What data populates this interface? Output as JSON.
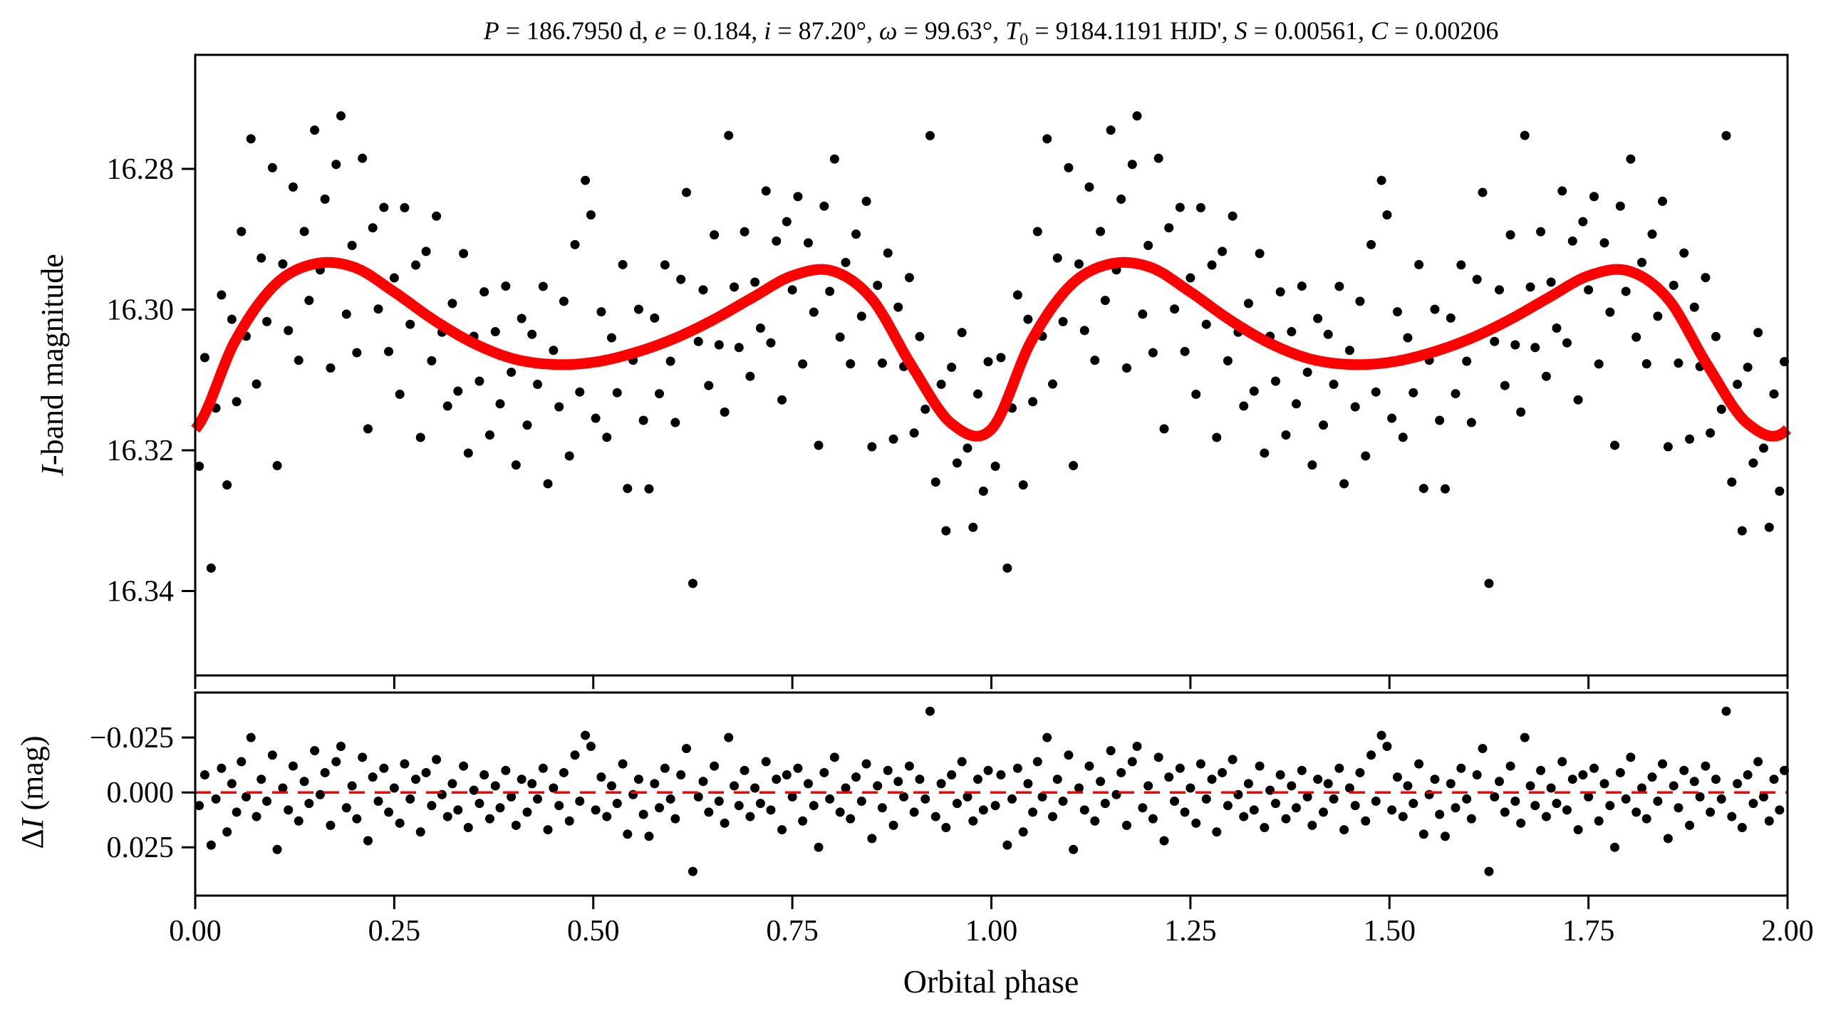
{
  "chart_data": [
    {
      "type": "scatter",
      "title": "P = 186.7950 d, e = 0.184, i = 87.20°, ω = 99.63°, T0 = 9184.1191 HJD', S = 0.00561, C = 0.00206",
      "title_parts": {
        "P": "186.7950 d",
        "e": "0.184",
        "i": "87.20°",
        "omega": "99.63°",
        "T0": "9184.1191 HJD'",
        "S": "0.00561",
        "C": "0.00206"
      },
      "xlabel": "",
      "ylabel": "I-band magnitude",
      "xlim": [
        0,
        2
      ],
      "ylim": [
        16.2638,
        16.352
      ],
      "y_inverted": true,
      "yticks": [
        "16.28",
        "16.30",
        "16.32",
        "16.34"
      ],
      "model_color": "#ff0000",
      "point_color": "#000000",
      "model_phase": [
        0,
        0.05,
        0.1,
        0.15,
        0.2,
        0.25,
        0.3,
        0.35,
        0.4,
        0.45,
        0.5,
        0.55,
        0.6,
        0.65,
        0.7,
        0.75,
        0.8,
        0.85,
        0.9,
        0.95,
        1.0
      ],
      "model_mag": [
        16.317,
        16.3045,
        16.2965,
        16.2935,
        16.294,
        16.2975,
        16.3015,
        16.3048,
        16.307,
        16.3078,
        16.3075,
        16.3062,
        16.3042,
        16.3015,
        16.2983,
        16.2952,
        16.2945,
        16.2985,
        16.308,
        16.3162,
        16.317
      ],
      "note": "points folded; each point shown at phase and phase+1; magnitude = model + residual"
    },
    {
      "type": "scatter",
      "xlabel": "Orbital phase",
      "ylabel": "ΔI (mag)",
      "xlim": [
        0,
        2
      ],
      "ylim": [
        -0.0455,
        0.047
      ],
      "y_inverted": true,
      "yticks": [
        "−0.025",
        "0.000",
        "0.025"
      ],
      "xticks": [
        "0.00",
        "0.25",
        "0.50",
        "0.75",
        "1.00",
        "1.25",
        "1.50",
        "1.75",
        "2.00"
      ],
      "zero_line_color": "#ff0000",
      "points": [
        [
          0.005,
          0.006
        ],
        [
          0.012,
          -0.008
        ],
        [
          0.02,
          0.024
        ],
        [
          0.026,
          0.003
        ],
        [
          0.033,
          -0.011
        ],
        [
          0.04,
          0.018
        ],
        [
          0.046,
          -0.004
        ],
        [
          0.052,
          0.009
        ],
        [
          0.058,
          -0.014
        ],
        [
          0.064,
          0.002
        ],
        [
          0.07,
          -0.025
        ],
        [
          0.077,
          0.011
        ],
        [
          0.083,
          -0.006
        ],
        [
          0.09,
          0.004
        ],
        [
          0.097,
          -0.017
        ],
        [
          0.103,
          0.026
        ],
        [
          0.11,
          -0.002
        ],
        [
          0.117,
          0.008
        ],
        [
          0.123,
          -0.012
        ],
        [
          0.13,
          0.013
        ],
        [
          0.137,
          -0.005
        ],
        [
          0.143,
          0.005
        ],
        [
          0.15,
          -0.019
        ],
        [
          0.157,
          0.001
        ],
        [
          0.163,
          -0.009
        ],
        [
          0.17,
          0.015
        ],
        [
          0.177,
          -0.014
        ],
        [
          0.183,
          -0.021
        ],
        [
          0.19,
          0.007
        ],
        [
          0.197,
          -0.003
        ],
        [
          0.203,
          0.012
        ],
        [
          0.21,
          -0.016
        ],
        [
          0.217,
          0.022
        ],
        [
          0.223,
          -0.007
        ],
        [
          0.23,
          0.004
        ],
        [
          0.237,
          -0.011
        ],
        [
          0.243,
          0.009
        ],
        [
          0.25,
          -0.002
        ],
        [
          0.257,
          0.014
        ],
        [
          0.263,
          -0.013
        ],
        [
          0.27,
          0.003
        ],
        [
          0.277,
          -0.006
        ],
        [
          0.283,
          0.018
        ],
        [
          0.29,
          -0.009
        ],
        [
          0.297,
          0.006
        ],
        [
          0.303,
          -0.015
        ],
        [
          0.31,
          0.001
        ],
        [
          0.317,
          0.011
        ],
        [
          0.323,
          -0.004
        ],
        [
          0.33,
          0.008
        ],
        [
          0.337,
          -0.012
        ],
        [
          0.343,
          0.016
        ],
        [
          0.35,
          -0.001
        ],
        [
          0.357,
          0.005
        ],
        [
          0.363,
          -0.008
        ],
        [
          0.37,
          0.012
        ],
        [
          0.377,
          -0.003
        ],
        [
          0.383,
          0.007
        ],
        [
          0.39,
          -0.01
        ],
        [
          0.397,
          0.002
        ],
        [
          0.403,
          0.015
        ],
        [
          0.41,
          -0.006
        ],
        [
          0.417,
          0.009
        ],
        [
          0.423,
          -0.004
        ],
        [
          0.43,
          0.003
        ],
        [
          0.437,
          -0.011
        ],
        [
          0.443,
          0.017
        ],
        [
          0.45,
          -0.002
        ],
        [
          0.457,
          0.006
        ],
        [
          0.463,
          -0.009
        ],
        [
          0.47,
          0.013
        ],
        [
          0.477,
          -0.017
        ],
        [
          0.483,
          0.004
        ],
        [
          0.49,
          -0.026
        ],
        [
          0.497,
          -0.021
        ],
        [
          0.503,
          0.008
        ],
        [
          0.51,
          -0.007
        ],
        [
          0.517,
          0.011
        ],
        [
          0.523,
          -0.003
        ],
        [
          0.53,
          0.005
        ],
        [
          0.537,
          -0.013
        ],
        [
          0.543,
          0.019
        ],
        [
          0.55,
          0.001
        ],
        [
          0.557,
          -0.006
        ],
        [
          0.563,
          0.01
        ],
        [
          0.57,
          0.02
        ],
        [
          0.577,
          -0.004
        ],
        [
          0.583,
          0.007
        ],
        [
          0.59,
          -0.011
        ],
        [
          0.597,
          0.003
        ],
        [
          0.603,
          0.012
        ],
        [
          0.61,
          -0.008
        ],
        [
          0.617,
          -0.02
        ],
        [
          0.625,
          0.036
        ],
        [
          0.632,
          0.002
        ],
        [
          0.638,
          -0.005
        ],
        [
          0.645,
          0.009
        ],
        [
          0.652,
          -0.012
        ],
        [
          0.658,
          0.004
        ],
        [
          0.665,
          0.014
        ],
        [
          0.67,
          -0.025
        ],
        [
          0.677,
          -0.003
        ],
        [
          0.683,
          0.006
        ],
        [
          0.69,
          -0.01
        ],
        [
          0.697,
          0.011
        ],
        [
          0.703,
          -0.002
        ],
        [
          0.71,
          0.005
        ],
        [
          0.717,
          -0.014
        ],
        [
          0.723,
          0.008
        ],
        [
          0.73,
          -0.006
        ],
        [
          0.737,
          0.017
        ],
        [
          0.743,
          -0.008
        ],
        [
          0.75,
          0.002
        ],
        [
          0.757,
          -0.011
        ],
        [
          0.763,
          0.013
        ],
        [
          0.77,
          -0.004
        ],
        [
          0.777,
          0.006
        ],
        [
          0.783,
          0.025
        ],
        [
          0.79,
          -0.009
        ],
        [
          0.797,
          0.003
        ],
        [
          0.803,
          -0.016
        ],
        [
          0.81,
          0.009
        ],
        [
          0.817,
          -0.002
        ],
        [
          0.823,
          0.012
        ],
        [
          0.83,
          -0.007
        ],
        [
          0.837,
          0.004
        ],
        [
          0.843,
          -0.013
        ],
        [
          0.85,
          0.021
        ],
        [
          0.857,
          -0.003
        ],
        [
          0.863,
          0.007
        ],
        [
          0.87,
          -0.01
        ],
        [
          0.877,
          0.015
        ],
        [
          0.883,
          -0.005
        ],
        [
          0.89,
          0.002
        ],
        [
          0.897,
          -0.012
        ],
        [
          0.903,
          0.009
        ],
        [
          0.91,
          -0.006
        ],
        [
          0.917,
          0.003
        ],
        [
          0.923,
          -0.037
        ],
        [
          0.93,
          0.011
        ],
        [
          0.937,
          -0.004
        ],
        [
          0.943,
          0.016
        ],
        [
          0.95,
          -0.008
        ],
        [
          0.957,
          0.005
        ],
        [
          0.963,
          -0.014
        ],
        [
          0.97,
          0.002
        ],
        [
          0.977,
          0.013
        ],
        [
          0.983,
          -0.006
        ],
        [
          0.99,
          0.008
        ],
        [
          0.996,
          -0.01
        ]
      ]
    }
  ]
}
